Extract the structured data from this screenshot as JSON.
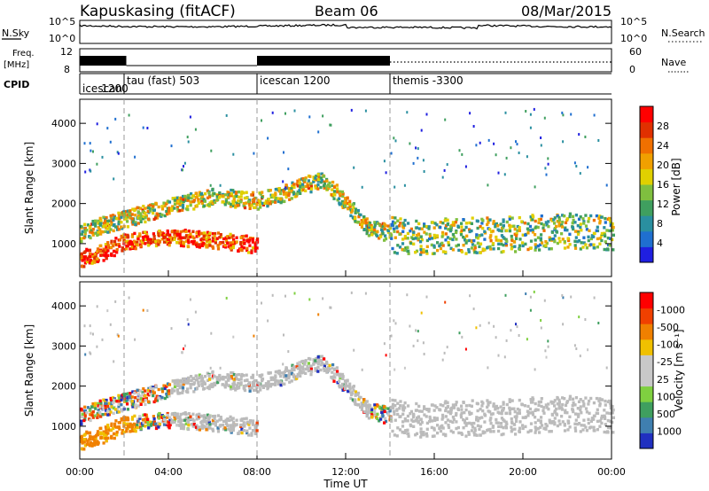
{
  "header": {
    "station": "Kapuskasing (fitACF)",
    "beam": "Beam 06",
    "date": "08/Mar/2015"
  },
  "status_panels": {
    "nsky_label": "N.Sky",
    "nsky_ticks": [
      "10^5",
      "10^0"
    ],
    "nsearch_label": "N.Search",
    "nsearch_ticks": [
      "10^5",
      "10^0"
    ],
    "freq_label_1": "Freq.",
    "freq_label_2": "[MHz]",
    "freq_ticks": [
      "12",
      "8"
    ],
    "nave_label": "Nave",
    "nave_ticks": [
      "60",
      "0"
    ],
    "cpid_label": "CPID"
  },
  "cpid_segments": [
    {
      "start_hour": 0.0,
      "label": "icescan"
    },
    {
      "start_hour": 0.85,
      "label": "1200"
    },
    {
      "start_hour": 2.0,
      "label": "tau (fast) 503"
    },
    {
      "start_hour": 8.0,
      "label": "icescan 1200"
    },
    {
      "start_hour": 14.0,
      "label": "themis -3300"
    }
  ],
  "chart_data": [
    {
      "type": "heatmap",
      "name": "power",
      "ylabel": "Slant Range [km]",
      "ylim": [
        180,
        4600
      ],
      "yticks": [
        1000,
        2000,
        3000,
        4000
      ],
      "colorbar_label": "Power [dB]",
      "colorbar_ticks": [
        "4",
        "8",
        "12",
        "16",
        "20",
        "24",
        "28"
      ],
      "color_scale": [
        "#1f1fe0",
        "#1f6fd0",
        "#2a8fa0",
        "#3f9f5f",
        "#7fbf3f",
        "#e0d000",
        "#f0a000",
        "#f07000",
        "#e03000",
        "#ff0000"
      ],
      "bands": [
        {
          "hours": [
            0.0,
            1.0,
            2.0,
            3.0,
            4.0,
            5.0,
            6.0,
            7.0,
            8.0,
            9.0,
            10.0,
            11.0,
            12.0,
            13.0,
            14.0
          ],
          "range_km": [
            1300,
            1500,
            1650,
            1800,
            1950,
            2100,
            2200,
            2150,
            2100,
            2250,
            2500,
            2600,
            2000,
            1400,
            1300
          ],
          "intensity_db": 14
        },
        {
          "hours": [
            14.0,
            16.0,
            18.0,
            20.0,
            22.0,
            24.0
          ],
          "range_km": [
            1250,
            1200,
            1250,
            1300,
            1350,
            1300
          ],
          "intensity_db": 12
        },
        {
          "hours": [
            0.0,
            1.0,
            2.0,
            4.0,
            6.0,
            8.0
          ],
          "range_km": [
            650,
            800,
            1100,
            1200,
            1100,
            1000
          ],
          "intensity_db": 24
        }
      ]
    },
    {
      "type": "heatmap",
      "name": "velocity",
      "ylabel": "Slant Range [km]",
      "xlabel": "Time UT",
      "ylim": [
        180,
        4600
      ],
      "yticks": [
        1000,
        2000,
        3000,
        4000
      ],
      "xlim": [
        0,
        24
      ],
      "xticks": [
        "00:00",
        "04:00",
        "08:00",
        "12:00",
        "16:00",
        "20:00",
        "00:00"
      ],
      "colorbar_label": "Velocity [m s⁻¹]",
      "colorbar_ticks": [
        "1000",
        "500",
        "100",
        "25",
        "-25",
        "-100",
        "-500",
        "-1000"
      ],
      "color_scale": [
        "#2030c0",
        "#3f7fb0",
        "#3f9f5f",
        "#7fd040",
        "#c8c8c8",
        "#c8c8c8",
        "#f0c000",
        "#f08000",
        "#f04000",
        "#ff0000"
      ],
      "ground_scatter_color": "#bbbbbb"
    }
  ]
}
